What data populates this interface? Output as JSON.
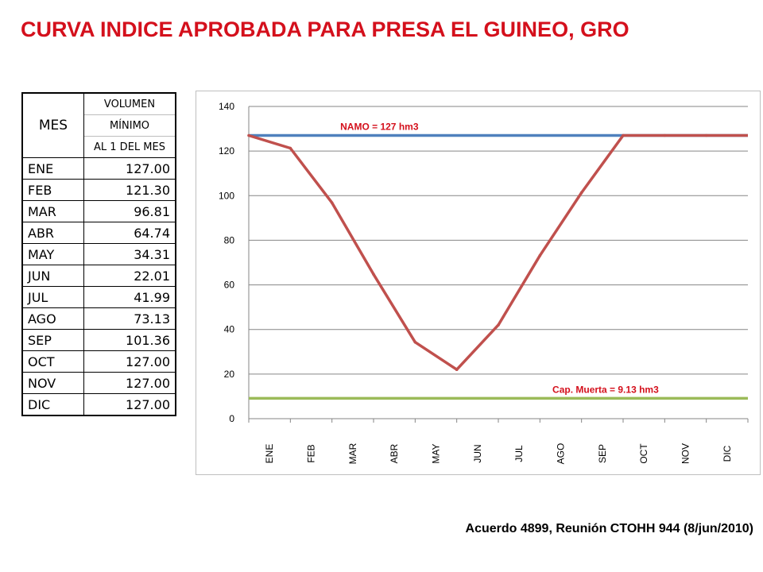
{
  "title": "CURVA INDICE APROBADA PARA PRESA EL GUINEO, GRO",
  "table": {
    "col_mes": "MES",
    "col_vol_1": "VOLUMEN",
    "col_vol_2": "MÍNIMO",
    "col_vol_3": "AL 1 DEL MES",
    "rows": [
      {
        "mes": "ENE",
        "vol": "127.00"
      },
      {
        "mes": "FEB",
        "vol": "121.30"
      },
      {
        "mes": "MAR",
        "vol": "96.81"
      },
      {
        "mes": "ABR",
        "vol": "64.74"
      },
      {
        "mes": "MAY",
        "vol": "34.31"
      },
      {
        "mes": "JUN",
        "vol": "22.01"
      },
      {
        "mes": "JUL",
        "vol": "41.99"
      },
      {
        "mes": "AGO",
        "vol": "73.13"
      },
      {
        "mes": "SEP",
        "vol": "101.36"
      },
      {
        "mes": "OCT",
        "vol": "127.00"
      },
      {
        "mes": "NOV",
        "vol": "127.00"
      },
      {
        "mes": "DIC",
        "vol": "127.00"
      }
    ]
  },
  "chart_data": {
    "type": "line",
    "categories": [
      "ENE",
      "FEB",
      "MAR",
      "ABR",
      "MAY",
      "JUN",
      "JUL",
      "AGO",
      "SEP",
      "OCT",
      "NOV",
      "DIC"
    ],
    "series": [
      {
        "name": "",
        "values": [
          127.0,
          121.3,
          96.81,
          64.74,
          34.31,
          22.01,
          41.99,
          73.13,
          101.36,
          127.0,
          127.0,
          127.0
        ],
        "color": "#c0504d"
      }
    ],
    "reference_lines": [
      {
        "label": "NAMO = 127 hm3",
        "value": 127,
        "color": "#4f81bd",
        "label_color": "#d4101c"
      },
      {
        "label": "Cap. Muerta = 9.13 hm3",
        "value": 9.13,
        "color": "#9bbb59",
        "label_color": "#d4101c"
      }
    ],
    "ylim": [
      0,
      140
    ],
    "yticks": [
      0,
      20,
      40,
      60,
      80,
      100,
      120,
      140
    ],
    "grid": true,
    "title": "",
    "xlabel": "",
    "ylabel": ""
  },
  "footer": "Acuerdo 4899, Reunión CTOHH 944 (8/jun/2010)"
}
